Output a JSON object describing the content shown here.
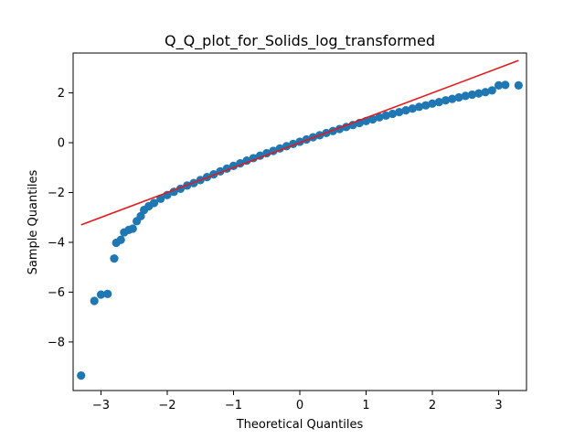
{
  "chart_data": {
    "type": "scatter",
    "title": "Q_Q_plot_for_Solids_log_transformed",
    "xlabel": "Theoretical Quantiles",
    "ylabel": "Sample Quantiles",
    "xlim": [
      -3.42,
      3.42
    ],
    "ylim": [
      -9.95,
      3.6
    ],
    "x_ticks": [
      -3,
      -2,
      -1,
      0,
      1,
      2,
      3
    ],
    "y_ticks": [
      -8,
      -6,
      -4,
      -2,
      0,
      2
    ],
    "grid": false,
    "legend": "none",
    "series": [
      {
        "type": "scatter",
        "color": "#1f77b4",
        "points": [
          {
            "x": -3.3,
            "y": -9.35
          },
          {
            "x": -3.1,
            "y": -6.35
          },
          {
            "x": -3.0,
            "y": -6.1
          },
          {
            "x": -2.9,
            "y": -6.07
          },
          {
            "x": -2.8,
            "y": -4.65
          },
          {
            "x": -2.77,
            "y": -4.02
          },
          {
            "x": -2.7,
            "y": -3.9
          },
          {
            "x": -2.65,
            "y": -3.6
          },
          {
            "x": -2.58,
            "y": -3.5
          },
          {
            "x": -2.52,
            "y": -3.45
          },
          {
            "x": -2.46,
            "y": -3.15
          },
          {
            "x": -2.4,
            "y": -2.95
          },
          {
            "x": -2.35,
            "y": -2.7
          },
          {
            "x": -2.28,
            "y": -2.55
          },
          {
            "x": -2.2,
            "y": -2.42
          },
          {
            "x": -2.1,
            "y": -2.25
          },
          {
            "x": -2.0,
            "y": -2.1
          },
          {
            "x": -1.9,
            "y": -1.97
          },
          {
            "x": -1.8,
            "y": -1.85
          },
          {
            "x": -1.7,
            "y": -1.72
          },
          {
            "x": -1.6,
            "y": -1.62
          },
          {
            "x": -1.5,
            "y": -1.5
          },
          {
            "x": -1.4,
            "y": -1.38
          },
          {
            "x": -1.3,
            "y": -1.27
          },
          {
            "x": -1.2,
            "y": -1.15
          },
          {
            "x": -1.1,
            "y": -1.04
          },
          {
            "x": -1.0,
            "y": -0.93
          },
          {
            "x": -0.9,
            "y": -0.83
          },
          {
            "x": -0.8,
            "y": -0.72
          },
          {
            "x": -0.7,
            "y": -0.62
          },
          {
            "x": -0.6,
            "y": -0.52
          },
          {
            "x": -0.5,
            "y": -0.42
          },
          {
            "x": -0.4,
            "y": -0.33
          },
          {
            "x": -0.3,
            "y": -0.23
          },
          {
            "x": -0.2,
            "y": -0.14
          },
          {
            "x": -0.1,
            "y": -0.05
          },
          {
            "x": 0.0,
            "y": 0.04
          },
          {
            "x": 0.1,
            "y": 0.13
          },
          {
            "x": 0.2,
            "y": 0.22
          },
          {
            "x": 0.3,
            "y": 0.3
          },
          {
            "x": 0.4,
            "y": 0.39
          },
          {
            "x": 0.5,
            "y": 0.47
          },
          {
            "x": 0.6,
            "y": 0.55
          },
          {
            "x": 0.7,
            "y": 0.63
          },
          {
            "x": 0.8,
            "y": 0.71
          },
          {
            "x": 0.9,
            "y": 0.79
          },
          {
            "x": 1.0,
            "y": 0.87
          },
          {
            "x": 1.1,
            "y": 0.94
          },
          {
            "x": 1.2,
            "y": 1.02
          },
          {
            "x": 1.3,
            "y": 1.09
          },
          {
            "x": 1.4,
            "y": 1.16
          },
          {
            "x": 1.5,
            "y": 1.23
          },
          {
            "x": 1.6,
            "y": 1.3
          },
          {
            "x": 1.7,
            "y": 1.37
          },
          {
            "x": 1.8,
            "y": 1.44
          },
          {
            "x": 1.9,
            "y": 1.5
          },
          {
            "x": 2.0,
            "y": 1.57
          },
          {
            "x": 2.1,
            "y": 1.63
          },
          {
            "x": 2.2,
            "y": 1.7
          },
          {
            "x": 2.3,
            "y": 1.76
          },
          {
            "x": 2.4,
            "y": 1.82
          },
          {
            "x": 2.5,
            "y": 1.88
          },
          {
            "x": 2.6,
            "y": 1.93
          },
          {
            "x": 2.7,
            "y": 1.98
          },
          {
            "x": 2.8,
            "y": 2.03
          },
          {
            "x": 2.9,
            "y": 2.1
          },
          {
            "x": 3.0,
            "y": 2.3
          },
          {
            "x": 3.1,
            "y": 2.32
          },
          {
            "x": 3.3,
            "y": 2.3
          }
        ]
      },
      {
        "type": "line",
        "color": "#e31a1c",
        "points": [
          {
            "x": -3.3,
            "y": -3.3
          },
          {
            "x": 3.3,
            "y": 3.3
          }
        ]
      }
    ]
  }
}
